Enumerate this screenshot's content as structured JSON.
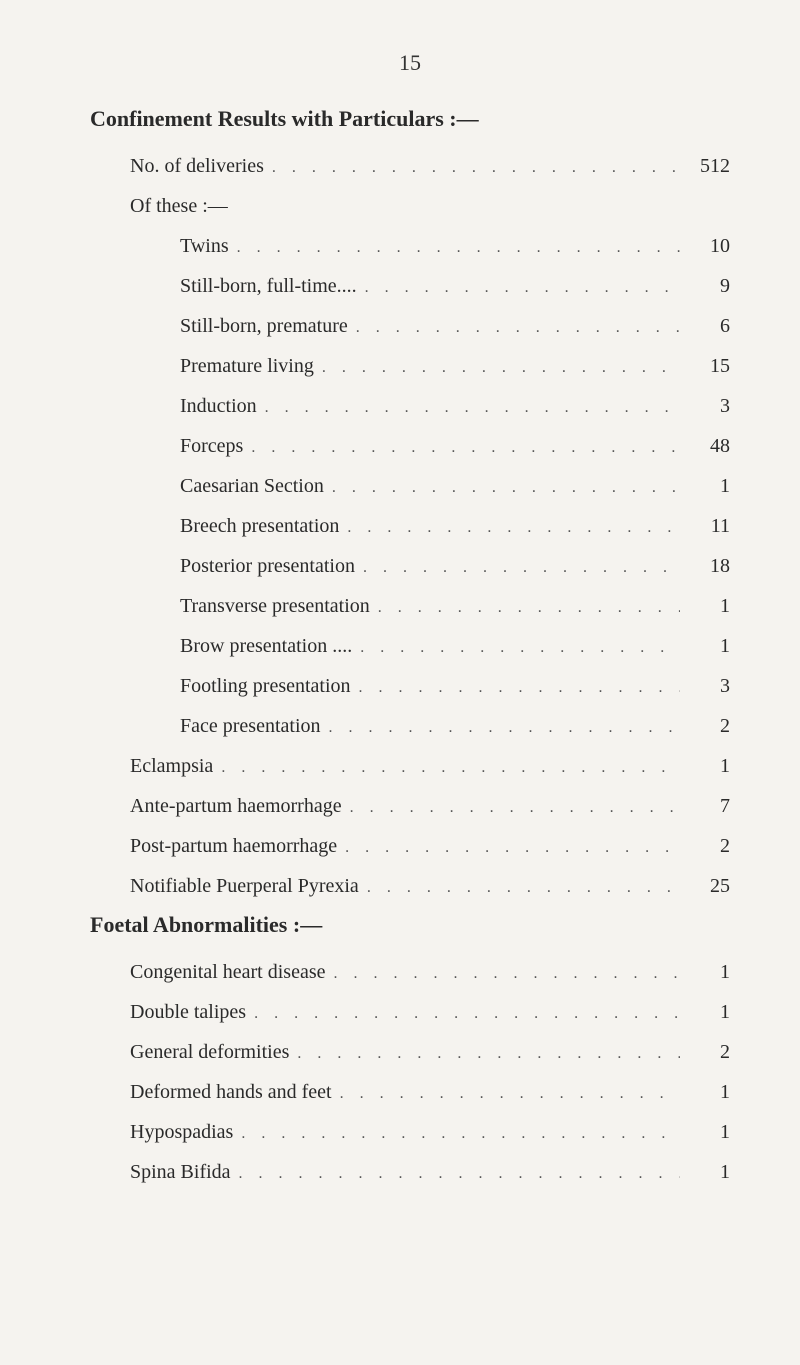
{
  "pageNumber": "15",
  "sections": [
    {
      "title": "Confinement Results with Particulars :—",
      "rows": [
        {
          "label": "No. of deliveries",
          "value": "512",
          "indent": 1
        },
        {
          "label": "Of these :—",
          "value": "",
          "indent": 1,
          "noDots": true
        },
        {
          "label": "Twins",
          "value": "10",
          "indent": 2
        },
        {
          "label": "Still-born, full-time....",
          "value": "9",
          "indent": 2
        },
        {
          "label": "Still-born, premature",
          "value": "6",
          "indent": 2
        },
        {
          "label": "Premature living",
          "value": "15",
          "indent": 2
        },
        {
          "label": "Induction",
          "value": "3",
          "indent": 2
        },
        {
          "label": "Forceps",
          "value": "48",
          "indent": 2
        },
        {
          "label": "Caesarian Section",
          "value": "1",
          "indent": 2
        },
        {
          "label": "Breech presentation",
          "value": "11",
          "indent": 2
        },
        {
          "label": "Posterior presentation",
          "value": "18",
          "indent": 2
        },
        {
          "label": "Transverse presentation",
          "value": "1",
          "indent": 2
        },
        {
          "label": "Brow presentation ....",
          "value": "1",
          "indent": 2
        },
        {
          "label": "Footling presentation",
          "value": "3",
          "indent": 2
        },
        {
          "label": "Face presentation",
          "value": "2",
          "indent": 2
        },
        {
          "label": "Eclampsia",
          "value": "1",
          "indent": 1
        },
        {
          "label": "Ante-partum haemorrhage",
          "value": "7",
          "indent": 1
        },
        {
          "label": "Post-partum haemorrhage",
          "value": "2",
          "indent": 1
        },
        {
          "label": "Notifiable Puerperal Pyrexia",
          "value": "25",
          "indent": 1
        }
      ]
    },
    {
      "title": "Foetal Abnormalities :—",
      "rows": [
        {
          "label": "Congenital heart disease",
          "value": "1",
          "indent": 1
        },
        {
          "label": "Double talipes",
          "value": "1",
          "indent": 1
        },
        {
          "label": "General deformities",
          "value": "2",
          "indent": 1
        },
        {
          "label": "Deformed hands and feet",
          "value": "1",
          "indent": 1
        },
        {
          "label": "Hypospadias",
          "value": "1",
          "indent": 1
        },
        {
          "label": "Spina Bifida",
          "value": "1",
          "indent": 1
        }
      ]
    }
  ]
}
